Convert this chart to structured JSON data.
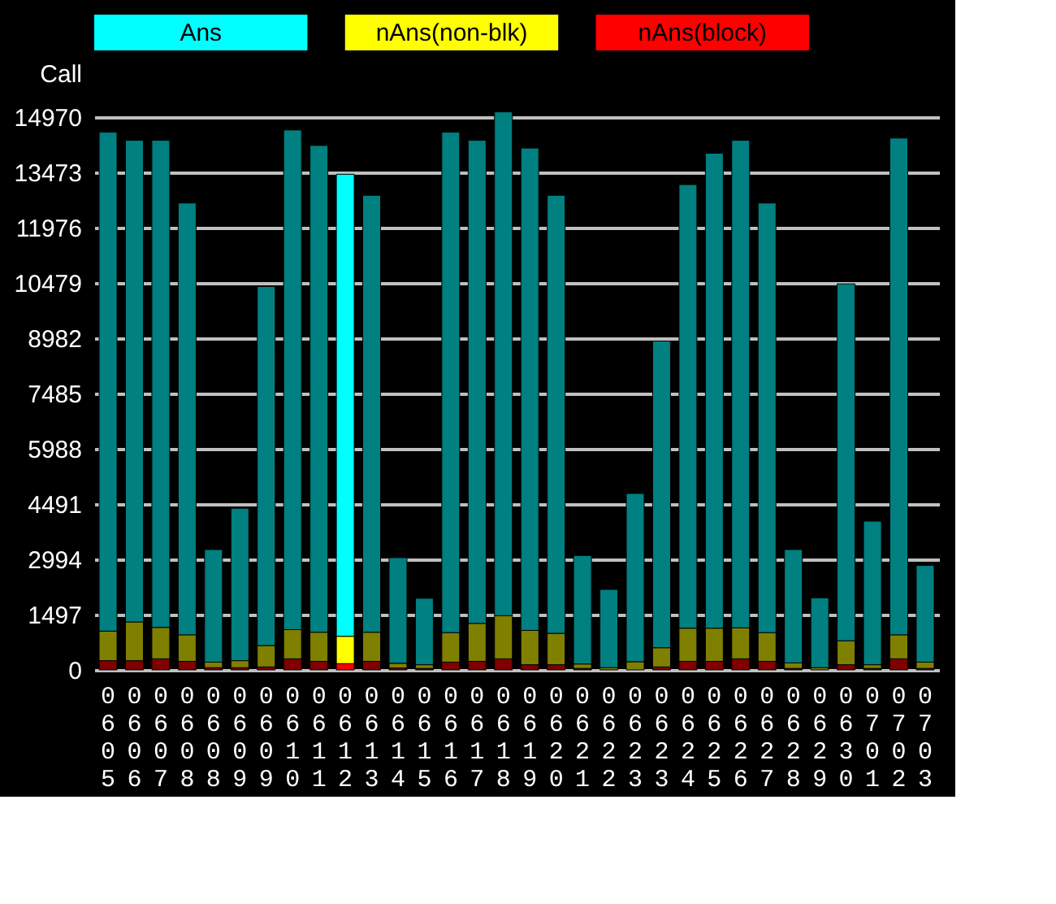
{
  "chart_data": {
    "type": "bar",
    "stacked": true,
    "ylabel": "Call",
    "legend": "top",
    "categories": [
      "0605",
      "0606",
      "0607",
      "0608",
      "0608",
      "0609",
      "0609",
      "0610",
      "0611",
      "0612",
      "0613",
      "0614",
      "0615",
      "0616",
      "0617",
      "0618",
      "0619",
      "0620",
      "0621",
      "0622",
      "0623",
      "0623",
      "0624",
      "0625",
      "0626",
      "0627",
      "0628",
      "0629",
      "0630",
      "0701",
      "0702",
      "0703"
    ],
    "ylim": [
      0,
      15200
    ],
    "yticks": [
      0,
      1497,
      2994,
      4491,
      5988,
      7485,
      8982,
      10479,
      11976,
      13473,
      14970
    ],
    "grid": "y",
    "series": [
      {
        "name": "nAns(block)",
        "color": "#ff0000",
        "colors": [
          "#800000",
          "#800000",
          "#800000",
          "#800000",
          "#800000",
          "#800000",
          "#800000",
          "#800000",
          "#800000",
          "#ff0000",
          "#800000",
          "#800000",
          "#800000",
          "#800000",
          "#800000",
          "#800000",
          "#800000",
          "#800000",
          "#800000",
          "#800000",
          "#800000",
          "#800000",
          "#800000",
          "#800000",
          "#800000",
          "#800000",
          "#800000",
          "#800000",
          "#800000",
          "#800000",
          "#800000",
          "#800000"
        ],
        "values": [
          250,
          250,
          300,
          230,
          60,
          60,
          80,
          300,
          230,
          170,
          230,
          50,
          40,
          210,
          230,
          300,
          140,
          140,
          40,
          null,
          null,
          80,
          230,
          230,
          300,
          230,
          40,
          null,
          140,
          40,
          300,
          40
        ]
      },
      {
        "name": "nAns(non-blk)",
        "color": "#ffff00",
        "colors": [
          "#808000",
          "#808000",
          "#808000",
          "#808000",
          "#808000",
          "#808000",
          "#808000",
          "#808000",
          "#808000",
          "#ffff00",
          "#808000",
          "#808000",
          "#808000",
          "#808000",
          "#808000",
          "#808000",
          "#808000",
          "#808000",
          "#808000",
          "#808000",
          "#808000",
          "#808000",
          "#808000",
          "#808000",
          "#808000",
          "#808000",
          "#808000",
          "#808000",
          "#808000",
          "#808000",
          "#808000",
          "#808000"
        ],
        "values": [
          800,
          1050,
          850,
          720,
          150,
          190,
          580,
          790,
          790,
          740,
          790,
          130,
          100,
          800,
          1030,
          1170,
          930,
          850,
          120,
          60,
          220,
          520,
          900,
          900,
          840,
          780,
          150,
          60,
          650,
          100,
          650,
          170
        ]
      },
      {
        "name": "Ans",
        "color": "#00ffff",
        "colors": [
          "#008080",
          "#008080",
          "#008080",
          "#008080",
          "#008080",
          "#008080",
          "#008080",
          "#008080",
          "#008080",
          "#00ffff",
          "#008080",
          "#008080",
          "#008080",
          "#008080",
          "#008080",
          "#008080",
          "#008080",
          "#008080",
          "#008080",
          "#008080",
          "#008080",
          "#008080",
          "#008080",
          "#008080",
          "#008080",
          "#008080",
          "#008080",
          "#008080",
          "#008080",
          "#008080",
          "#008080",
          "#008080"
        ],
        "values": [
          13520,
          13050,
          13200,
          11700,
          3050,
          4130,
          9730,
          13540,
          13190,
          12520,
          11840,
          2860,
          1800,
          13560,
          13090,
          13650,
          13070,
          11870,
          2940,
          2120,
          4560,
          8310,
          12020,
          12870,
          13210,
          11640,
          3070,
          1890,
          9670,
          3890,
          13460,
          2620
        ]
      }
    ]
  }
}
